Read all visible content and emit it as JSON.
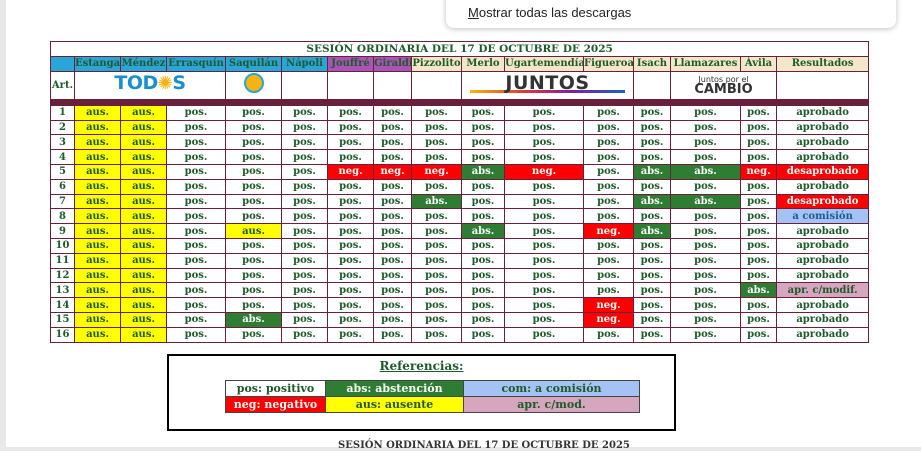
{
  "download_popup": {
    "pre": "",
    "accel": "M",
    "rest": "ostrar todas las descargas"
  },
  "title": "SESIÓN ORDINARIA DEL 17 DE OCTUBRE DE 2025",
  "art_label": "Art.",
  "results_header": "Resultados",
  "members": [
    {
      "name": "Estanga",
      "bloc": "todos"
    },
    {
      "name": "Méndez",
      "bloc": "todos"
    },
    {
      "name": "Errasquín",
      "bloc": "todos"
    },
    {
      "name": "Saquilán",
      "bloc": "todos"
    },
    {
      "name": "Nápoli",
      "bloc": "todos"
    },
    {
      "name": "Jouffré",
      "bloc": "juntos"
    },
    {
      "name": "Giraldi",
      "bloc": "juntos"
    },
    {
      "name": "Pizzolito",
      "bloc": "jxc"
    },
    {
      "name": "Merlo",
      "bloc": "jxc"
    },
    {
      "name": "Ugartemendía",
      "bloc": "jxc"
    },
    {
      "name": "Figueroa",
      "bloc": "jxc"
    },
    {
      "name": "Isach",
      "bloc": "jxc"
    },
    {
      "name": "Llamazares",
      "bloc": "jxc"
    },
    {
      "name": "Ávila",
      "bloc": "jxc"
    }
  ],
  "logos": {
    "todos_a": "TOD",
    "todos_b": "S",
    "juntos": "JUNTOS",
    "jxc_small": "Juntos por el",
    "jxc_big": "CAMBIO"
  },
  "colors": {
    "aus": "#ffff00",
    "neg": "#ff0000",
    "abs": "#2e7d32",
    "a_comision": "#a4c2f4",
    "apr_c_mod": "#d5a6bd",
    "header_todos": "#2aa5d8",
    "header_juntos": "#a855b6",
    "header_jxc": "#f4e6c8",
    "separator": "#6a1f3c"
  },
  "rows": [
    {
      "art": "1",
      "votes": [
        "aus.",
        "aus.",
        "pos.",
        "pos.",
        "pos.",
        "pos.",
        "pos.",
        "pos.",
        "pos.",
        "pos.",
        "pos.",
        "pos.",
        "pos.",
        "pos."
      ],
      "result": "aprobado",
      "result_type": "ok"
    },
    {
      "art": "2",
      "votes": [
        "aus.",
        "aus.",
        "pos.",
        "pos.",
        "pos.",
        "pos.",
        "pos.",
        "pos.",
        "pos.",
        "pos.",
        "pos.",
        "pos.",
        "pos.",
        "pos."
      ],
      "result": "aprobado",
      "result_type": "ok"
    },
    {
      "art": "3",
      "votes": [
        "aus.",
        "aus.",
        "pos.",
        "pos.",
        "pos.",
        "pos.",
        "pos.",
        "pos.",
        "pos.",
        "pos.",
        "pos.",
        "pos.",
        "pos.",
        "pos."
      ],
      "result": "aprobado",
      "result_type": "ok"
    },
    {
      "art": "4",
      "votes": [
        "aus.",
        "aus.",
        "pos.",
        "pos.",
        "pos.",
        "pos.",
        "pos.",
        "pos.",
        "pos.",
        "pos.",
        "pos.",
        "pos.",
        "pos.",
        "pos."
      ],
      "result": "aprobado",
      "result_type": "ok"
    },
    {
      "art": "5",
      "votes": [
        "aus.",
        "aus.",
        "pos.",
        "pos.",
        "pos.",
        "neg.",
        "neg.",
        "neg.",
        "abs.",
        "neg.",
        "pos.",
        "abs.",
        "abs.",
        "neg."
      ],
      "result": "desaprobado",
      "result_type": "neg"
    },
    {
      "art": "6",
      "votes": [
        "aus.",
        "aus.",
        "pos.",
        "pos.",
        "pos.",
        "pos.",
        "pos.",
        "pos.",
        "pos.",
        "pos.",
        "pos.",
        "pos.",
        "pos.",
        "pos."
      ],
      "result": "aprobado",
      "result_type": "ok"
    },
    {
      "art": "7",
      "votes": [
        "aus.",
        "aus.",
        "pos.",
        "pos.",
        "pos.",
        "pos.",
        "pos.",
        "abs.",
        "pos.",
        "pos.",
        "pos.",
        "abs.",
        "abs.",
        "pos."
      ],
      "result": "desaprobado",
      "result_type": "neg"
    },
    {
      "art": "8",
      "votes": [
        "aus.",
        "aus.",
        "pos.",
        "pos.",
        "pos.",
        "pos.",
        "pos.",
        "pos.",
        "pos.",
        "pos.",
        "pos.",
        "pos.",
        "pos.",
        "pos."
      ],
      "result": "a comisión",
      "result_type": "com"
    },
    {
      "art": "9",
      "votes": [
        "aus.",
        "aus.",
        "pos.",
        "aus.",
        "pos.",
        "pos.",
        "pos.",
        "pos.",
        "abs.",
        "pos.",
        "neg.",
        "abs.",
        "pos.",
        "pos."
      ],
      "result": "aprobado",
      "result_type": "ok"
    },
    {
      "art": "10",
      "votes": [
        "aus.",
        "aus.",
        "pos.",
        "pos.",
        "pos.",
        "pos.",
        "pos.",
        "pos.",
        "pos.",
        "pos.",
        "pos.",
        "pos.",
        "pos.",
        "pos."
      ],
      "result": "aprobado",
      "result_type": "ok"
    },
    {
      "art": "11",
      "votes": [
        "aus.",
        "aus.",
        "pos.",
        "pos.",
        "pos.",
        "pos.",
        "pos.",
        "pos.",
        "pos.",
        "pos.",
        "pos.",
        "pos.",
        "pos.",
        "pos."
      ],
      "result": "aprobado",
      "result_type": "ok"
    },
    {
      "art": "12",
      "votes": [
        "aus.",
        "aus.",
        "pos.",
        "pos.",
        "pos.",
        "pos.",
        "pos.",
        "pos.",
        "pos.",
        "pos.",
        "pos.",
        "pos.",
        "pos.",
        "pos."
      ],
      "result": "aprobado",
      "result_type": "ok"
    },
    {
      "art": "13",
      "votes": [
        "aus.",
        "aus.",
        "pos.",
        "pos.",
        "pos.",
        "pos.",
        "pos.",
        "pos.",
        "pos.",
        "pos.",
        "pos.",
        "pos.",
        "pos.",
        "abs."
      ],
      "result": "apr. c/modif.",
      "result_type": "mod"
    },
    {
      "art": "14",
      "votes": [
        "aus.",
        "aus.",
        "pos.",
        "pos.",
        "pos.",
        "pos.",
        "pos.",
        "pos.",
        "pos.",
        "pos.",
        "neg.",
        "pos.",
        "pos.",
        "pos."
      ],
      "result": "aprobado",
      "result_type": "ok"
    },
    {
      "art": "15",
      "votes": [
        "aus.",
        "aus.",
        "pos.",
        "abs.",
        "pos.",
        "pos.",
        "pos.",
        "pos.",
        "pos.",
        "pos.",
        "neg.",
        "pos.",
        "pos.",
        "pos."
      ],
      "result": "aprobado",
      "result_type": "ok"
    },
    {
      "art": "16",
      "votes": [
        "aus.",
        "aus.",
        "pos.",
        "pos.",
        "pos.",
        "pos.",
        "pos.",
        "pos.",
        "pos.",
        "pos.",
        "pos.",
        "pos.",
        "pos.",
        "pos."
      ],
      "result": "aprobado",
      "result_type": "ok"
    }
  ],
  "references": {
    "title": "Referencias:",
    "items": [
      {
        "label": "pos: positivo",
        "type": "pos"
      },
      {
        "label": "abs: abstención",
        "type": "abs"
      },
      {
        "label": "com: a comisión",
        "type": "com"
      },
      {
        "label": "neg: negativo",
        "type": "neg"
      },
      {
        "label": "aus: ausente",
        "type": "aus"
      },
      {
        "label": "apr. c/mod.",
        "type": "mod"
      }
    ]
  },
  "next_title": "SESIÓN ORDINARIA DEL 17 DE OCTUBRE DE 2025"
}
